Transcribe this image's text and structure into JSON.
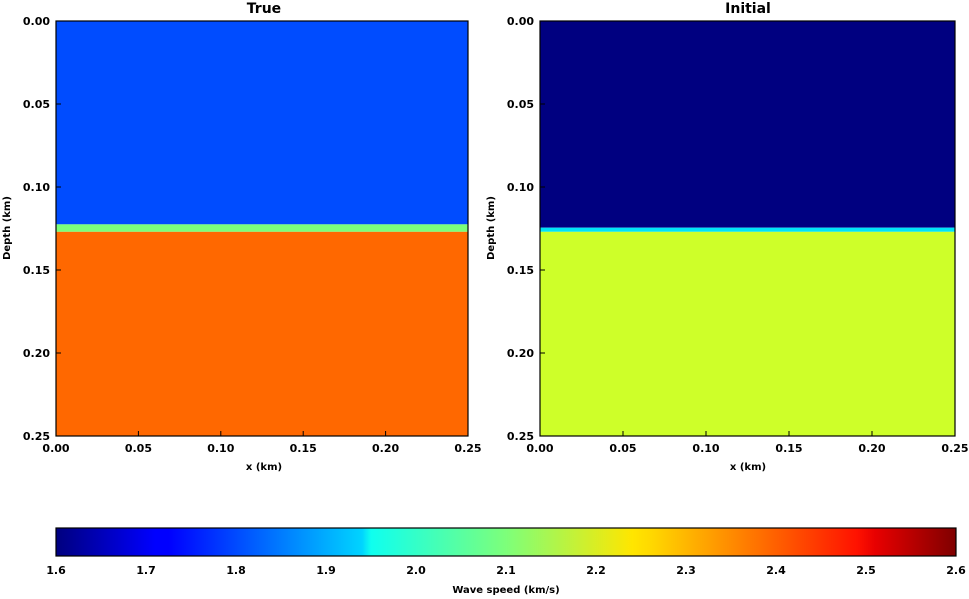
{
  "chart_data": {
    "panels": [
      {
        "type": "heatmap",
        "title": "True",
        "xlabel": "x (km)",
        "ylabel": "Depth (km)",
        "xlim": [
          0.0,
          0.25
        ],
        "ylim": [
          0.0,
          0.25
        ],
        "y_inverted": true,
        "x_ticks": [
          "0.00",
          "0.05",
          "0.10",
          "0.15",
          "0.20",
          "0.25"
        ],
        "y_ticks": [
          "0.00",
          "0.05",
          "0.10",
          "0.15",
          "0.20",
          "0.25"
        ],
        "layers": [
          {
            "depth_top": 0.0,
            "depth_bottom": 0.1225,
            "wave_speed": 1.8
          },
          {
            "depth_top": 0.1225,
            "depth_bottom": 0.127,
            "wave_speed": 2.1
          },
          {
            "depth_top": 0.127,
            "depth_bottom": 0.25,
            "wave_speed": 2.4
          }
        ]
      },
      {
        "type": "heatmap",
        "title": "Initial",
        "xlabel": "x (km)",
        "ylabel": "Depth (km)",
        "xlim": [
          0.0,
          0.25
        ],
        "ylim": [
          0.0,
          0.25
        ],
        "y_inverted": true,
        "x_ticks": [
          "0.00",
          "0.05",
          "0.10",
          "0.15",
          "0.20",
          "0.25"
        ],
        "y_ticks": [
          "0.00",
          "0.05",
          "0.10",
          "0.15",
          "0.20",
          "0.25"
        ],
        "layers": [
          {
            "depth_top": 0.0,
            "depth_bottom": 0.1245,
            "wave_speed": 1.6
          },
          {
            "depth_top": 0.1245,
            "depth_bottom": 0.127,
            "wave_speed": 1.95
          },
          {
            "depth_top": 0.127,
            "depth_bottom": 0.25,
            "wave_speed": 2.2
          }
        ]
      }
    ],
    "colorbar": {
      "label": "Wave speed (km/s)",
      "colormap": "jet",
      "range": [
        1.6,
        2.6
      ],
      "ticks": [
        "1.6",
        "1.7",
        "1.8",
        "1.9",
        "2.0",
        "2.1",
        "2.2",
        "2.3",
        "2.4",
        "2.5",
        "2.6"
      ],
      "orientation": "horizontal"
    }
  }
}
